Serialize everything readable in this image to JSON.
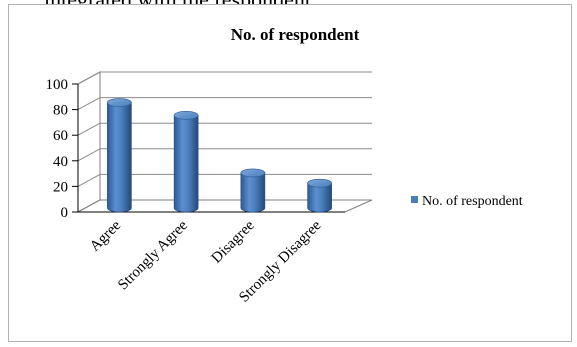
{
  "page_header_fragment": "integrated with the respondent",
  "chart_data": {
    "type": "bar",
    "title": "No. of respondent",
    "categories": [
      "Agree",
      "Strongly Agree",
      "Disagree",
      "Strongly Disagree"
    ],
    "series": [
      {
        "name": "No. of respondent",
        "values": [
          81,
          71,
          26,
          18
        ],
        "color": "#4a7ebb"
      }
    ],
    "ylim": [
      0,
      100
    ],
    "yticks": [
      0,
      20,
      40,
      60,
      80,
      100
    ],
    "grid": true,
    "legend_position": "right",
    "style": "3d-cylinder"
  }
}
